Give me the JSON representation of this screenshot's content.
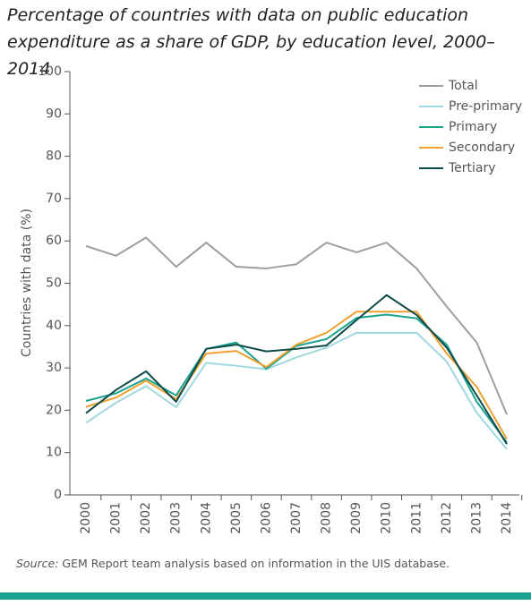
{
  "chart_data": {
    "type": "line",
    "title": "Percentage of countries with data on public education expenditure as a share of GDP, by education level, 2000–2014",
    "y_label": "Countries with data (%)",
    "source_label": "Source:",
    "source_text": "GEM Report team analysis based on information in the UIS database.",
    "categories": [
      "2000",
      "2001",
      "2002",
      "2003",
      "2004",
      "2005",
      "2006",
      "2007",
      "2008",
      "2009",
      "2010",
      "2011",
      "2012",
      "2013",
      "2014"
    ],
    "ylim": [
      0,
      100
    ],
    "yticks": [
      0,
      10,
      20,
      30,
      40,
      50,
      60,
      70,
      80,
      90,
      100
    ],
    "grid": false,
    "legend": "top-right",
    "series": [
      {
        "name": "Total",
        "color": "#9e9e9e",
        "values": [
          58.8,
          56.5,
          60.8,
          53.9,
          59.6,
          53.9,
          53.5,
          54.5,
          59.6,
          57.3,
          59.6,
          53.5,
          44.5,
          36,
          19
        ]
      },
      {
        "name": "Pre-primary",
        "color": "#9fd8e0",
        "values": [
          17,
          21.8,
          25.7,
          20.7,
          31.2,
          30.5,
          29.7,
          32.5,
          34.8,
          38.3,
          38.3,
          38.3,
          31.5,
          19.4,
          10.8
        ]
      },
      {
        "name": "Primary",
        "color": "#1aa38f",
        "values": [
          22.2,
          24,
          27.5,
          23.5,
          34.5,
          36,
          29.8,
          35.2,
          36.8,
          41.8,
          42.6,
          41.7,
          35.5,
          22,
          12.4
        ]
      },
      {
        "name": "Secondary",
        "color": "#f0a030",
        "values": [
          20.8,
          23,
          27,
          22.6,
          33.4,
          34,
          30.2,
          35.5,
          38.3,
          43.3,
          43.3,
          43.3,
          33.4,
          25.5,
          13.2
        ]
      },
      {
        "name": "Tertiary",
        "color": "#0d4a4a",
        "values": [
          19.3,
          24.8,
          29.2,
          22,
          34.5,
          35.5,
          33.9,
          34.5,
          35.3,
          41.3,
          47.2,
          42.5,
          34.8,
          23.5,
          12
        ]
      }
    ]
  }
}
